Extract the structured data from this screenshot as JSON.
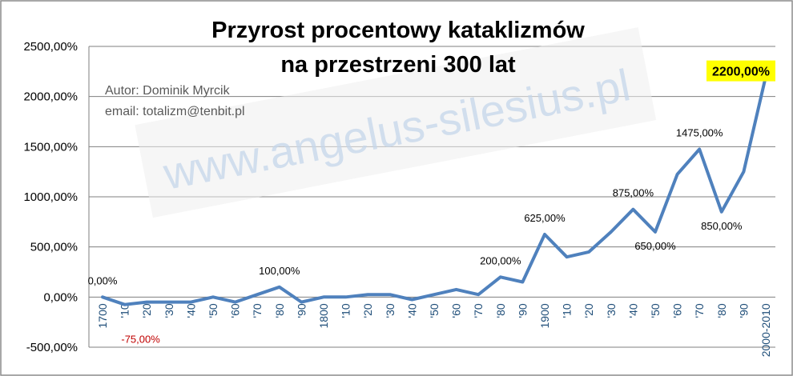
{
  "chart_data": {
    "type": "line",
    "title_lines": [
      "Przyrost procentowy kataklizmów",
      "na przestrzeni 300 lat"
    ],
    "xlabel": "",
    "ylabel": "",
    "ylim": [
      -500,
      2500
    ],
    "yticks": [
      -500,
      0,
      500,
      1000,
      1500,
      2000,
      2500
    ],
    "ytick_labels": [
      "-500,00%",
      "0,00%",
      "500,00%",
      "1000,00%",
      "1500,00%",
      "2000,00%",
      "2500,00%"
    ],
    "grid": true,
    "categories": [
      "1700",
      "'10",
      "'20",
      "'30",
      "'40",
      "'50",
      "'60",
      "'70",
      "'80",
      "'90",
      "1800",
      "'10",
      "'20",
      "'30",
      "'40",
      "'50",
      "'60",
      "'70",
      "'80",
      "'90",
      "1900",
      "'10",
      "'20",
      "'30",
      "'40",
      "'50",
      "'60",
      "'70",
      "'80",
      "'90",
      "2000-2010"
    ],
    "series": [
      {
        "values": [
          0,
          -75,
          -50,
          -50,
          -50,
          0,
          -50,
          25,
          100,
          -50,
          0,
          0,
          25,
          25,
          -25,
          25,
          75,
          25,
          200,
          150,
          625,
          400,
          450,
          650,
          875,
          650,
          1225,
          1475,
          850,
          1250,
          2200
        ],
        "color": "#4f81bd"
      }
    ],
    "data_labels": [
      {
        "index": 0,
        "text": "0,00%",
        "negative": false,
        "highlight": false
      },
      {
        "index": 1,
        "text": "-75,00%",
        "negative": true,
        "highlight": false
      },
      {
        "index": 8,
        "text": "100,00%",
        "negative": false,
        "highlight": false
      },
      {
        "index": 18,
        "text": "200,00%",
        "negative": false,
        "highlight": false
      },
      {
        "index": 20,
        "text": "625,00%",
        "negative": false,
        "highlight": false
      },
      {
        "index": 24,
        "text": "875,00%",
        "negative": false,
        "highlight": false
      },
      {
        "index": 25,
        "text": "650,00%",
        "negative": false,
        "highlight": false
      },
      {
        "index": 27,
        "text": "1475,00%",
        "negative": false,
        "highlight": false
      },
      {
        "index": 28,
        "text": "850,00%",
        "negative": false,
        "highlight": false
      },
      {
        "index": 30,
        "text": "2200,00%",
        "negative": false,
        "highlight": true
      }
    ],
    "annotations": {
      "author": "Autor:  Dominik Myrcik",
      "email": "email:  totalizm@tenbit.pl",
      "watermark": "www.angelus-silesius.pl"
    },
    "colors": {
      "line": "#4f81bd",
      "xlabels": "#1f4e79",
      "negative_label": "#c00000",
      "highlight_bg": "#ffff00"
    }
  }
}
